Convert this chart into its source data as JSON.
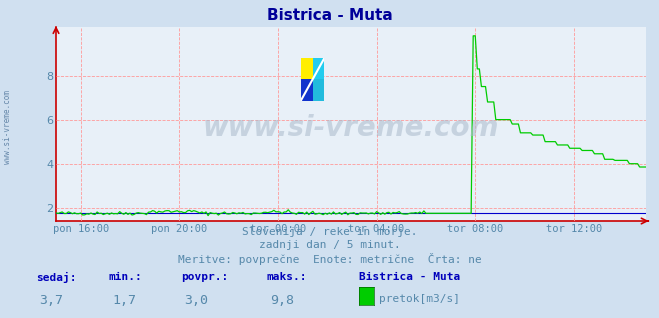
{
  "title": "Bistrica - Muta",
  "title_color": "#000099",
  "bg_color": "#d0e0f0",
  "plot_bg_color": "#e8f0f8",
  "grid_color": "#ff9999",
  "grid_linestyle": "--",
  "axis_color": "#cc0000",
  "line_color": "#00cc00",
  "line_color2": "#0000cc",
  "ylim": [
    1.4,
    10.2
  ],
  "yticks": [
    2,
    4,
    6,
    8
  ],
  "xlabel_ticks": [
    "pon 16:00",
    "pon 20:00",
    "tor 00:00",
    "tor 04:00",
    "tor 08:00",
    "tor 12:00"
  ],
  "subtitle1": "Slovenija / reke in morje.",
  "subtitle2": "zadnji dan / 5 minut.",
  "subtitle3": "Meritve: povprečne  Enote: metrične  Črta: ne",
  "subtitle_color": "#5588aa",
  "legend_title": "Bistrica - Muta",
  "legend_label": "pretok[m3/s]",
  "stats_labels": [
    "sedaj:",
    "min.:",
    "povpr.:",
    "maks.:"
  ],
  "stats_values": [
    "3,7",
    "1,7",
    "3,0",
    "9,8"
  ],
  "stats_bold_color": "#0000bb",
  "watermark": "www.si-vreme.com",
  "n_points": 288,
  "spike_idx": 204,
  "spike_val": 9.8,
  "base_flow": 1.75
}
